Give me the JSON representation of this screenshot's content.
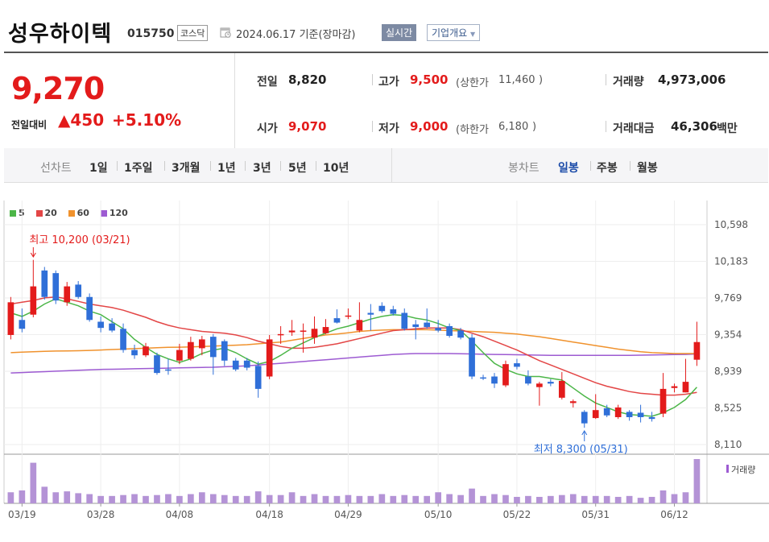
{
  "header": {
    "company": "성우하이텍",
    "code": "015750",
    "market": "코스닥",
    "as_of": "2024.06.17 기준(장마감)",
    "realtime": "실시간",
    "overview": "기업개요"
  },
  "price": {
    "current": "9,270",
    "diff_label": "전일대비",
    "diff_value": "▲450",
    "diff_pct": "+5.10%"
  },
  "stats": {
    "prev_label": "전일",
    "prev_value": "8,820",
    "high_label": "고가",
    "high_value": "9,500",
    "upper_label": "(상한가",
    "upper_value": "11,460",
    "upper_close": ")",
    "volume_label": "거래량",
    "volume_value": "4,973,006",
    "open_label": "시가",
    "open_value": "9,070",
    "low_label": "저가",
    "low_value": "9,000",
    "lower_label": "(하한가",
    "lower_value": "6,180",
    "lower_close": ")",
    "amount_label": "거래대금",
    "amount_value": "46,306",
    "amount_unit": "백만"
  },
  "periods": {
    "line_label": "선차트",
    "items": [
      "1일",
      "1주일",
      "3개월",
      "1년",
      "3년",
      "5년",
      "10년"
    ],
    "candle_label": "봉차트",
    "candle_items": [
      "일봉",
      "주봉",
      "월봉"
    ],
    "candle_active": 0
  },
  "chart_data": {
    "type": "candlestick",
    "legend": [
      {
        "name": "5",
        "color": "#4cb648"
      },
      {
        "name": "20",
        "color": "#e34646"
      },
      {
        "name": "60",
        "color": "#f0922d"
      },
      {
        "name": "120",
        "color": "#9d5bd2"
      }
    ],
    "y_ticks": [
      "10,598",
      "10,183",
      "9,769",
      "9,354",
      "8,939",
      "8,525",
      "8,110"
    ],
    "y_range": [
      8110,
      10598
    ],
    "x_ticks": [
      {
        "label": "03/19",
        "index": 1
      },
      {
        "label": "03/28",
        "index": 8
      },
      {
        "label": "04/08",
        "index": 15
      },
      {
        "label": "04/18",
        "index": 23
      },
      {
        "label": "04/29",
        "index": 30
      },
      {
        "label": "05/10",
        "index": 38
      },
      {
        "label": "05/22",
        "index": 45
      },
      {
        "label": "05/31",
        "index": 52
      },
      {
        "label": "06/12",
        "index": 59
      }
    ],
    "high_annotation": "최고 10,200 (03/21)",
    "high_index": 2,
    "low_annotation": "최저 8,300 (05/31)",
    "low_index": 51,
    "volume_label": "거래량",
    "candles": [
      {
        "o": 9350,
        "h": 9780,
        "l": 9300,
        "c": 9720
      },
      {
        "o": 9520,
        "h": 9650,
        "l": 9380,
        "c": 9420
      },
      {
        "o": 9580,
        "h": 10200,
        "l": 9550,
        "c": 9900
      },
      {
        "o": 10080,
        "h": 10120,
        "l": 9750,
        "c": 9780
      },
      {
        "o": 10050,
        "h": 10080,
        "l": 9700,
        "c": 9740
      },
      {
        "o": 9720,
        "h": 9950,
        "l": 9680,
        "c": 9900
      },
      {
        "o": 9920,
        "h": 9960,
        "l": 9760,
        "c": 9780
      },
      {
        "o": 9780,
        "h": 9820,
        "l": 9500,
        "c": 9520
      },
      {
        "o": 9500,
        "h": 9560,
        "l": 9380,
        "c": 9430
      },
      {
        "o": 9480,
        "h": 9540,
        "l": 9380,
        "c": 9400
      },
      {
        "o": 9420,
        "h": 9480,
        "l": 9150,
        "c": 9180
      },
      {
        "o": 9180,
        "h": 9240,
        "l": 9080,
        "c": 9120
      },
      {
        "o": 9120,
        "h": 9260,
        "l": 9100,
        "c": 9220
      },
      {
        "o": 9120,
        "h": 9150,
        "l": 8900,
        "c": 8920
      },
      {
        "o": 8960,
        "h": 9080,
        "l": 8900,
        "c": 8950
      },
      {
        "o": 9060,
        "h": 9250,
        "l": 9020,
        "c": 9180
      },
      {
        "o": 9080,
        "h": 9330,
        "l": 9060,
        "c": 9270
      },
      {
        "o": 9200,
        "h": 9340,
        "l": 9120,
        "c": 9300
      },
      {
        "o": 9330,
        "h": 9360,
        "l": 8900,
        "c": 9100
      },
      {
        "o": 9280,
        "h": 9300,
        "l": 9000,
        "c": 9060
      },
      {
        "o": 9060,
        "h": 9090,
        "l": 8940,
        "c": 8960
      },
      {
        "o": 9060,
        "h": 9090,
        "l": 8950,
        "c": 8980
      },
      {
        "o": 9000,
        "h": 9050,
        "l": 8640,
        "c": 8740
      },
      {
        "o": 8880,
        "h": 9350,
        "l": 8850,
        "c": 9300
      },
      {
        "o": 9350,
        "h": 9450,
        "l": 9250,
        "c": 9360
      },
      {
        "o": 9380,
        "h": 9520,
        "l": 9340,
        "c": 9400
      },
      {
        "o": 9390,
        "h": 9480,
        "l": 9150,
        "c": 9400
      },
      {
        "o": 9320,
        "h": 9560,
        "l": 9250,
        "c": 9420
      },
      {
        "o": 9370,
        "h": 9530,
        "l": 9360,
        "c": 9440
      },
      {
        "o": 9540,
        "h": 9640,
        "l": 9480,
        "c": 9490
      },
      {
        "o": 9560,
        "h": 9650,
        "l": 9530,
        "c": 9570
      },
      {
        "o": 9400,
        "h": 9720,
        "l": 9380,
        "c": 9520
      },
      {
        "o": 9600,
        "h": 9700,
        "l": 9400,
        "c": 9580
      },
      {
        "o": 9680,
        "h": 9720,
        "l": 9600,
        "c": 9620
      },
      {
        "o": 9640,
        "h": 9680,
        "l": 9570,
        "c": 9590
      },
      {
        "o": 9600,
        "h": 9650,
        "l": 9400,
        "c": 9420
      },
      {
        "o": 9470,
        "h": 9520,
        "l": 9300,
        "c": 9440
      },
      {
        "o": 9490,
        "h": 9650,
        "l": 9420,
        "c": 9440
      },
      {
        "o": 9430,
        "h": 9520,
        "l": 9380,
        "c": 9400
      },
      {
        "o": 9450,
        "h": 9480,
        "l": 9320,
        "c": 9340
      },
      {
        "o": 9400,
        "h": 9430,
        "l": 9300,
        "c": 9320
      },
      {
        "o": 9320,
        "h": 9360,
        "l": 8850,
        "c": 8880
      },
      {
        "o": 8870,
        "h": 8900,
        "l": 8840,
        "c": 8860
      },
      {
        "o": 8880,
        "h": 8920,
        "l": 8750,
        "c": 8800
      },
      {
        "o": 8780,
        "h": 9060,
        "l": 8760,
        "c": 9020
      },
      {
        "o": 9030,
        "h": 9080,
        "l": 8960,
        "c": 8990
      },
      {
        "o": 8880,
        "h": 8950,
        "l": 8780,
        "c": 8800
      },
      {
        "o": 8760,
        "h": 8820,
        "l": 8550,
        "c": 8800
      },
      {
        "o": 8820,
        "h": 8850,
        "l": 8770,
        "c": 8800
      },
      {
        "o": 8640,
        "h": 8930,
        "l": 8620,
        "c": 8830
      },
      {
        "o": 8580,
        "h": 8620,
        "l": 8530,
        "c": 8600
      },
      {
        "o": 8480,
        "h": 8500,
        "l": 8300,
        "c": 8350
      },
      {
        "o": 8410,
        "h": 8680,
        "l": 8400,
        "c": 8500
      },
      {
        "o": 8520,
        "h": 8560,
        "l": 8420,
        "c": 8440
      },
      {
        "o": 8420,
        "h": 8560,
        "l": 8400,
        "c": 8530
      },
      {
        "o": 8480,
        "h": 8500,
        "l": 8380,
        "c": 8420
      },
      {
        "o": 8470,
        "h": 8560,
        "l": 8360,
        "c": 8420
      },
      {
        "o": 8420,
        "h": 8480,
        "l": 8370,
        "c": 8400
      },
      {
        "o": 8460,
        "h": 8920,
        "l": 8420,
        "c": 8740
      },
      {
        "o": 8750,
        "h": 8800,
        "l": 8700,
        "c": 8770
      },
      {
        "o": 8700,
        "h": 9080,
        "l": 8700,
        "c": 8820
      },
      {
        "o": 9070,
        "h": 9500,
        "l": 9000,
        "c": 9270
      }
    ],
    "volumes": [
      12,
      14,
      44,
      18,
      12,
      13,
      11,
      10,
      8,
      8,
      9,
      10,
      8,
      9,
      10,
      8,
      10,
      12,
      10,
      9,
      8,
      8,
      13,
      9,
      9,
      12,
      8,
      10,
      8,
      8,
      9,
      8,
      8,
      10,
      8,
      9,
      8,
      8,
      12,
      10,
      9,
      16,
      8,
      10,
      9,
      7,
      8,
      7,
      8,
      9,
      10,
      8,
      8,
      8,
      7,
      8,
      6,
      7,
      14,
      10,
      12,
      48
    ],
    "ma5": [
      9600,
      9560,
      9620,
      9700,
      9760,
      9720,
      9680,
      9620,
      9580,
      9500,
      9420,
      9300,
      9210,
      9130,
      9080,
      9040,
      9080,
      9140,
      9180,
      9200,
      9150,
      9080,
      9020,
      9050,
      9120,
      9200,
      9260,
      9320,
      9370,
      9420,
      9450,
      9490,
      9530,
      9560,
      9580,
      9570,
      9540,
      9520,
      9480,
      9430,
      9400,
      9280,
      9150,
      9030,
      8960,
      8910,
      8880,
      8880,
      8860,
      8840,
      8750,
      8660,
      8580,
      8530,
      8480,
      8450,
      8440,
      8430,
      8470,
      8530,
      8620,
      8760
    ],
    "ma20": [
      9700,
      9720,
      9740,
      9770,
      9780,
      9760,
      9730,
      9700,
      9680,
      9660,
      9630,
      9590,
      9550,
      9500,
      9460,
      9430,
      9410,
      9390,
      9380,
      9370,
      9350,
      9320,
      9280,
      9250,
      9220,
      9200,
      9200,
      9210,
      9230,
      9250,
      9280,
      9310,
      9340,
      9370,
      9400,
      9410,
      9420,
      9430,
      9430,
      9430,
      9410,
      9370,
      9330,
      9280,
      9230,
      9180,
      9120,
      9060,
      9010,
      8960,
      8910,
      8860,
      8810,
      8770,
      8740,
      8710,
      8690,
      8680,
      8670,
      8670,
      8680,
      8700
    ],
    "ma60": [
      9150,
      9155,
      9160,
      9165,
      9168,
      9170,
      9172,
      9175,
      9180,
      9185,
      9190,
      9195,
      9200,
      9205,
      9210,
      9212,
      9215,
      9220,
      9225,
      9230,
      9235,
      9240,
      9250,
      9260,
      9270,
      9290,
      9310,
      9330,
      9350,
      9360,
      9375,
      9390,
      9400,
      9405,
      9410,
      9410,
      9410,
      9410,
      9405,
      9400,
      9395,
      9390,
      9385,
      9380,
      9370,
      9360,
      9345,
      9330,
      9310,
      9290,
      9270,
      9250,
      9230,
      9210,
      9190,
      9175,
      9160,
      9150,
      9145,
      9140,
      9140,
      9140
    ],
    "ma120": [
      8920,
      8925,
      8930,
      8935,
      8940,
      8945,
      8950,
      8955,
      8960,
      8962,
      8965,
      8968,
      8970,
      8972,
      8975,
      8978,
      8980,
      8983,
      8985,
      8990,
      8995,
      9000,
      9010,
      9020,
      9030,
      9040,
      9050,
      9060,
      9070,
      9080,
      9090,
      9100,
      9110,
      9120,
      9130,
      9135,
      9140,
      9140,
      9140,
      9140,
      9138,
      9135,
      9132,
      9130,
      9128,
      9126,
      9124,
      9122,
      9120,
      9120,
      9120,
      9120,
      9120,
      9120,
      9120,
      9120,
      9122,
      9124,
      9126,
      9128,
      9130,
      9135
    ]
  }
}
